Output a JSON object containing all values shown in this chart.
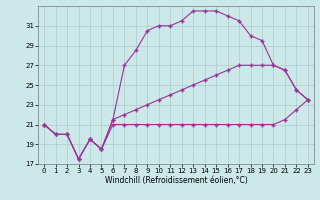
{
  "line1_x": [
    0,
    1,
    2,
    3,
    4,
    5,
    6,
    7,
    8,
    9,
    10,
    11,
    12,
    13,
    14,
    15,
    16,
    17,
    18,
    19,
    20,
    21,
    22,
    23
  ],
  "line1_y": [
    21.0,
    20.0,
    20.0,
    17.5,
    19.5,
    18.5,
    21.5,
    27.0,
    28.5,
    30.5,
    31.0,
    31.0,
    31.5,
    32.5,
    32.5,
    32.5,
    32.0,
    31.5,
    30.0,
    29.5,
    27.0,
    26.5,
    24.5,
    23.5
  ],
  "line2_x": [
    0,
    1,
    2,
    3,
    4,
    5,
    6,
    7,
    8,
    9,
    10,
    11,
    12,
    13,
    14,
    15,
    16,
    17,
    18,
    19,
    20,
    21,
    22,
    23
  ],
  "line2_y": [
    21.0,
    20.0,
    20.0,
    17.5,
    19.5,
    18.5,
    21.5,
    22.0,
    22.5,
    23.0,
    23.5,
    24.0,
    24.5,
    25.0,
    25.5,
    26.0,
    26.5,
    27.0,
    27.0,
    27.0,
    27.0,
    26.5,
    24.5,
    23.5
  ],
  "line3_x": [
    0,
    1,
    2,
    3,
    4,
    5,
    6,
    7,
    8,
    9,
    10,
    11,
    12,
    13,
    14,
    15,
    16,
    17,
    18,
    19,
    20,
    21,
    22,
    23
  ],
  "line3_y": [
    21.0,
    20.0,
    20.0,
    17.5,
    19.5,
    18.5,
    21.0,
    21.0,
    21.0,
    21.0,
    21.0,
    21.0,
    21.0,
    21.0,
    21.0,
    21.0,
    21.0,
    21.0,
    21.0,
    21.0,
    21.0,
    21.5,
    22.5,
    23.5
  ],
  "color": "#993399",
  "bg_color": "#cce8e8",
  "grid_color": "#aacccc",
  "xlabel": "Windchill (Refroidissement éolien,°C)",
  "xlim": [
    -0.5,
    23.5
  ],
  "ylim": [
    17,
    33
  ],
  "yticks": [
    17,
    19,
    21,
    23,
    25,
    27,
    29,
    31
  ],
  "xticks": [
    0,
    1,
    2,
    3,
    4,
    5,
    6,
    7,
    8,
    9,
    10,
    11,
    12,
    13,
    14,
    15,
    16,
    17,
    18,
    19,
    20,
    21,
    22,
    23
  ],
  "marker": "+",
  "markersize": 3,
  "linewidth": 0.8,
  "tick_fontsize": 5,
  "xlabel_fontsize": 5.5
}
